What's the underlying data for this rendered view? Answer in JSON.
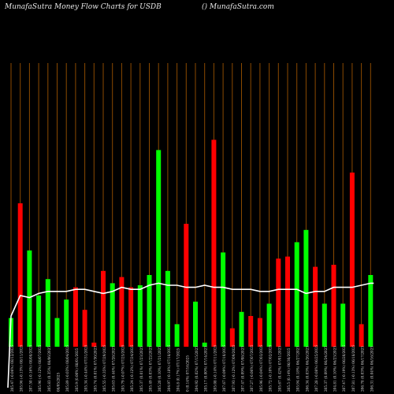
{
  "header": {
    "title_left": "MunafaSutra  Money Flow  Charts for USDB",
    "title_right": "() MunafaSutra.com"
  },
  "colors": {
    "background": "#000000",
    "up": "#00ff00",
    "down": "#ff0000",
    "line": "#ffffff",
    "gridline": "#8b4a00"
  },
  "chart_data": {
    "type": "bar",
    "title": "MunafaSutra  Money Flow  Charts for USDB",
    "ylim": [
      0,
      100
    ],
    "categories": [
      "205.47 (-0.06%) 08/12/2025",
      "205.96 (-0.13%) 08/11/2025",
      "207.50 (-0.16%) 08/08/2025",
      "205.96 (-0.12%) 08/07/2025",
      "205.83 (0.35%) 08/06/2025",
      "08/05/2025",
      "205.89 (-0.03%) 08/04/2025",
      "205.9 (0.00%) 08/01/2025",
      "205.34 (-0.44%) 07/31/2025",
      "205.74 (0.01%) 07/30/2025",
      "205.55 (-0.35%) 07/29/2025",
      "205.63 (0.44%) 07/28/2025",
      "205.79 (-0.07%) 07/25/2025",
      "205.24 (-0.12%) 07/24/2025",
      "205.37 (0.01%) 07/23/2025",
      "205.49 (0.03%) 07/22/2025",
      "205.20 (0.10%) 07/21/2025",
      "204.97 (-0.18%) 07/18/2025",
      "204.8 (0.17%) 07/17/2025",
      "0 (0.14%) 07/16/2025",
      "204.92 (0.02%) 07/15/2025",
      "205.17 (0.00%) 07/14/2025",
      "205.08 (-0.14%) 07/11/2025",
      "207.67 (-0.09%) 07/10/2025",
      "207.93 (-0.12%) 07/09/2025",
      "207.47 (0.09%) 07/08/2025",
      "207.27 (-0.06%) 07/07/2025",
      "205.96 (-0.04%) 07/03/2025",
      "205.72 (-0.10%) 07/02/2025",
      "205.67 (0.42%) 07/01/2025",
      "205.5  (0.14%) 06/30/2025",
      "205.94 (0.18%) 06/27/2025",
      "206.34 (0.03%) 06/26/2025",
      "207.28 (-0.08%) 06/25/2025",
      "205.37 (0.09%) 06/24/2025",
      "204.81 (0.10%) 06/23/2025",
      "207.47 (-0.19%) 06/20/2025",
      "207.81 (-0.13%) 06/18/2025",
      "206.78 (0.03%) 06/17/2025",
      "206.31 (0.04%) 06/16/2025"
    ],
    "bar_values": [
      14,
      70,
      47,
      25,
      33,
      14,
      23,
      29,
      18,
      2,
      37,
      31,
      34,
      29,
      30,
      35,
      96,
      37,
      11,
      60,
      22,
      2,
      101,
      46,
      9,
      17,
      15,
      14,
      21,
      43,
      44,
      51,
      57,
      39,
      21,
      40,
      21,
      85,
      11,
      35
    ],
    "bar_colors": [
      "up",
      "down",
      "up",
      "up",
      "up",
      "up",
      "up",
      "down",
      "down",
      "down",
      "down",
      "up",
      "down",
      "down",
      "up",
      "up",
      "up",
      "up",
      "up",
      "down",
      "up",
      "up",
      "down",
      "up",
      "down",
      "up",
      "down",
      "down",
      "up",
      "down",
      "down",
      "up",
      "up",
      "down",
      "up",
      "down",
      "up",
      "down",
      "down",
      "up"
    ],
    "line_values": [
      15,
      25,
      24,
      26,
      27,
      27,
      27,
      28,
      28,
      27,
      26,
      27,
      29,
      28,
      28,
      30,
      31,
      30,
      30,
      29,
      29,
      30,
      29,
      29,
      28,
      28,
      28,
      27,
      27,
      28,
      28,
      28,
      26,
      27,
      27,
      29,
      29,
      29,
      30,
      31
    ],
    "line_start": -20,
    "grid": true
  }
}
